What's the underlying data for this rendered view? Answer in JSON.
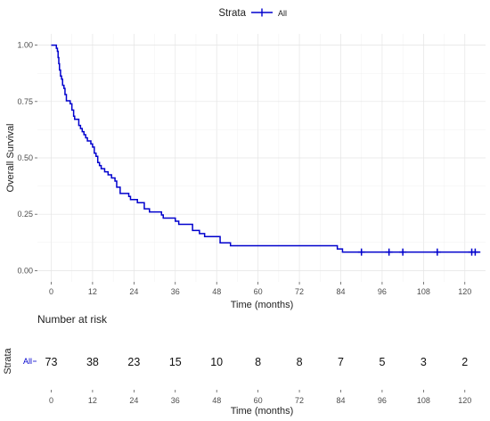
{
  "chart_data": [
    {
      "type": "line",
      "subtype": "kaplan-meier",
      "title": "",
      "xlabel": "Time (months)",
      "ylabel": "Overall Survival",
      "xlim": [
        -4,
        126
      ],
      "ylim": [
        -0.05,
        1.05
      ],
      "x_ticks": [
        0,
        12,
        24,
        36,
        48,
        60,
        72,
        84,
        96,
        108,
        120
      ],
      "y_ticks": [
        0.0,
        0.25,
        0.5,
        0.75,
        1.0
      ],
      "y_tick_labels": [
        "0.00",
        "0.25",
        "0.50",
        "0.75",
        "1.00"
      ],
      "grid": true,
      "legend": {
        "title": "Strata",
        "placement": "top-center",
        "entries": [
          "All"
        ]
      },
      "series": [
        {
          "name": "All",
          "color": "#0000CD",
          "steps": [
            [
              0,
              1.0
            ],
            [
              1.5,
              0.986
            ],
            [
              1.8,
              0.973
            ],
            [
              2.0,
              0.945
            ],
            [
              2.2,
              0.918
            ],
            [
              2.4,
              0.89
            ],
            [
              2.7,
              0.863
            ],
            [
              3.0,
              0.849
            ],
            [
              3.3,
              0.822
            ],
            [
              3.7,
              0.808
            ],
            [
              4.0,
              0.781
            ],
            [
              4.4,
              0.753
            ],
            [
              5.5,
              0.74
            ],
            [
              6.0,
              0.712
            ],
            [
              6.5,
              0.685
            ],
            [
              6.8,
              0.671
            ],
            [
              8.0,
              0.644
            ],
            [
              8.5,
              0.63
            ],
            [
              9.0,
              0.616
            ],
            [
              9.5,
              0.603
            ],
            [
              10.0,
              0.589
            ],
            [
              10.5,
              0.575
            ],
            [
              11.5,
              0.562
            ],
            [
              12.0,
              0.548
            ],
            [
              12.5,
              0.521
            ],
            [
              13.0,
              0.507
            ],
            [
              13.5,
              0.479
            ],
            [
              14.0,
              0.466
            ],
            [
              14.5,
              0.452
            ],
            [
              15.5,
              0.438
            ],
            [
              16.5,
              0.425
            ],
            [
              17.5,
              0.411
            ],
            [
              18.5,
              0.397
            ],
            [
              19.0,
              0.37
            ],
            [
              20.0,
              0.342
            ],
            [
              22.5,
              0.329
            ],
            [
              23.0,
              0.315
            ],
            [
              25.0,
              0.301
            ],
            [
              27.0,
              0.274
            ],
            [
              28.5,
              0.26
            ],
            [
              32.0,
              0.247
            ],
            [
              32.5,
              0.233
            ],
            [
              36.0,
              0.219
            ],
            [
              37.0,
              0.205
            ],
            [
              41.0,
              0.178
            ],
            [
              43.0,
              0.164
            ],
            [
              44.5,
              0.151
            ],
            [
              49.0,
              0.123
            ],
            [
              52.0,
              0.11
            ],
            [
              83.0,
              0.096
            ],
            [
              84.5,
              0.082
            ],
            [
              124.5,
              0.082
            ]
          ],
          "censor_times": [
            90,
            98,
            102,
            112,
            122,
            123
          ]
        }
      ]
    },
    {
      "type": "table",
      "title": "Number at risk",
      "xlabel": "Time (months)",
      "ylabel": "Strata",
      "row_label": "All",
      "times": [
        0,
        12,
        24,
        36,
        48,
        60,
        72,
        84,
        96,
        108,
        120
      ],
      "values": [
        73,
        38,
        23,
        15,
        10,
        8,
        8,
        7,
        5,
        3,
        2
      ],
      "xlim": [
        -4,
        126
      ]
    }
  ]
}
